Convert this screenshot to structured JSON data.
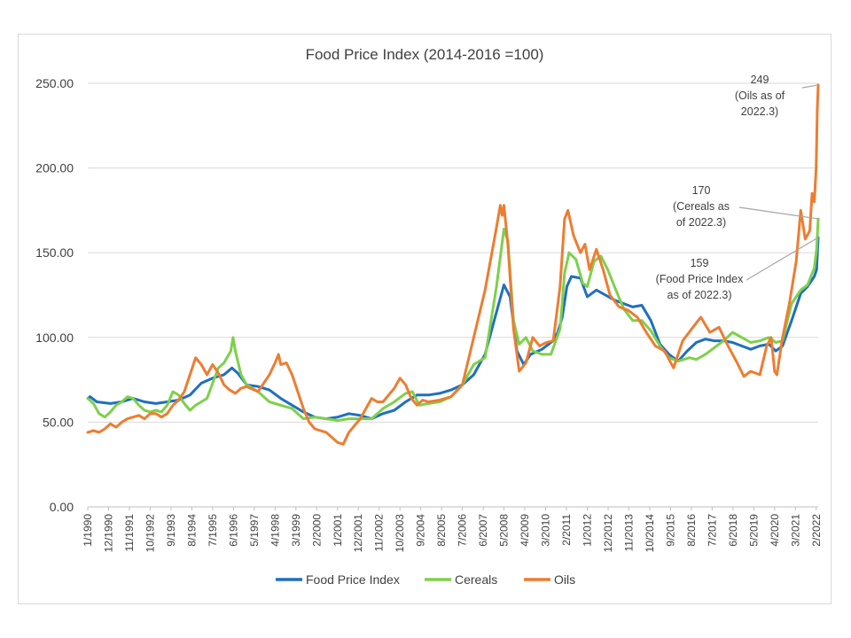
{
  "chart_data": {
    "type": "line",
    "title": "Food Price Index (2014-2016 =100)",
    "xlabel": "",
    "ylabel": "",
    "ylim": [
      0,
      250
    ],
    "yticks": [
      "0.00",
      "50.00",
      "100.00",
      "150.00",
      "200.00",
      "250.00"
    ],
    "y_tick_values": [
      0,
      50,
      100,
      150,
      200,
      250
    ],
    "x_start": "1/1990",
    "x_end": "3/2022",
    "xticks": [
      "1/1990",
      "12/1990",
      "11/1991",
      "10/1992",
      "9/1993",
      "8/1994",
      "7/1995",
      "6/1996",
      "5/1997",
      "4/1998",
      "3/1999",
      "2/2000",
      "1/2001",
      "12/2001",
      "11/2002",
      "10/2003",
      "9/2004",
      "8/2005",
      "7/2006",
      "6/2007",
      "5/2008",
      "4/2009",
      "3/2010",
      "2/2011",
      "1/2012",
      "12/2012",
      "11/2013",
      "10/2014",
      "9/2015",
      "8/2016",
      "7/2017",
      "6/2018",
      "5/2019",
      "4/2020",
      "3/2021",
      "2/2022"
    ],
    "legend_position": "bottom",
    "series": [
      {
        "name": "Food Price Index",
        "color": "#1f6fbf",
        "points": [
          [
            1990.0,
            64
          ],
          [
            1990.1,
            65
          ],
          [
            1990.4,
            62
          ],
          [
            1991.0,
            61
          ],
          [
            1991.5,
            62
          ],
          [
            1992.0,
            64
          ],
          [
            1992.5,
            62
          ],
          [
            1993.0,
            61
          ],
          [
            1993.5,
            62
          ],
          [
            1994.0,
            63
          ],
          [
            1994.5,
            66
          ],
          [
            1995.0,
            73
          ],
          [
            1995.5,
            76
          ],
          [
            1996.0,
            78
          ],
          [
            1996.35,
            82
          ],
          [
            1996.6,
            79
          ],
          [
            1997.0,
            72
          ],
          [
            1997.5,
            71
          ],
          [
            1998.0,
            69
          ],
          [
            1998.5,
            64
          ],
          [
            1999.0,
            60
          ],
          [
            1999.5,
            56
          ],
          [
            2000.0,
            53
          ],
          [
            2000.5,
            52
          ],
          [
            2001.0,
            53
          ],
          [
            2001.5,
            55
          ],
          [
            2002.0,
            54
          ],
          [
            2002.5,
            52
          ],
          [
            2003.0,
            55
          ],
          [
            2003.5,
            57
          ],
          [
            2004.0,
            62
          ],
          [
            2004.5,
            66
          ],
          [
            2005.0,
            66
          ],
          [
            2005.5,
            67
          ],
          [
            2006.0,
            69
          ],
          [
            2006.5,
            72
          ],
          [
            2007.0,
            78
          ],
          [
            2007.5,
            90
          ],
          [
            2008.0,
            115
          ],
          [
            2008.33,
            131
          ],
          [
            2008.6,
            124
          ],
          [
            2008.9,
            92
          ],
          [
            2009.2,
            84
          ],
          [
            2009.5,
            90
          ],
          [
            2010.0,
            93
          ],
          [
            2010.5,
            98
          ],
          [
            2010.7,
            103
          ],
          [
            2010.9,
            112
          ],
          [
            2011.1,
            130
          ],
          [
            2011.3,
            136
          ],
          [
            2011.7,
            135
          ],
          [
            2012.0,
            124
          ],
          [
            2012.4,
            128
          ],
          [
            2012.8,
            125
          ],
          [
            2013.2,
            122
          ],
          [
            2013.6,
            120
          ],
          [
            2014.0,
            118
          ],
          [
            2014.4,
            119
          ],
          [
            2014.8,
            110
          ],
          [
            2015.2,
            96
          ],
          [
            2015.6,
            90
          ],
          [
            2016.0,
            86
          ],
          [
            2016.4,
            92
          ],
          [
            2016.8,
            97
          ],
          [
            2017.2,
            99
          ],
          [
            2017.6,
            98
          ],
          [
            2018.0,
            98
          ],
          [
            2018.4,
            97
          ],
          [
            2018.8,
            95
          ],
          [
            2019.2,
            93
          ],
          [
            2019.6,
            95
          ],
          [
            2020.0,
            96
          ],
          [
            2020.3,
            92
          ],
          [
            2020.6,
            95
          ],
          [
            2021.0,
            110
          ],
          [
            2021.4,
            126
          ],
          [
            2021.7,
            130
          ],
          [
            2022.0,
            136
          ],
          [
            2022.1,
            140
          ],
          [
            2022.17,
            159
          ]
        ]
      },
      {
        "name": "Cereals",
        "color": "#7ed04b",
        "points": [
          [
            1990.0,
            64
          ],
          [
            1990.25,
            61
          ],
          [
            1990.5,
            55
          ],
          [
            1990.75,
            53
          ],
          [
            1991.0,
            56
          ],
          [
            1991.25,
            60
          ],
          [
            1991.5,
            62
          ],
          [
            1991.75,
            65
          ],
          [
            1992.0,
            64
          ],
          [
            1992.25,
            60
          ],
          [
            1992.5,
            57
          ],
          [
            1992.75,
            56
          ],
          [
            1993.0,
            57
          ],
          [
            1993.25,
            56
          ],
          [
            1993.5,
            60
          ],
          [
            1993.75,
            68
          ],
          [
            1994.0,
            66
          ],
          [
            1994.25,
            61
          ],
          [
            1994.5,
            57
          ],
          [
            1994.75,
            60
          ],
          [
            1995.0,
            62
          ],
          [
            1995.25,
            64
          ],
          [
            1995.5,
            73
          ],
          [
            1995.75,
            82
          ],
          [
            1996.0,
            85
          ],
          [
            1996.3,
            92
          ],
          [
            1996.4,
            100
          ],
          [
            1996.5,
            92
          ],
          [
            1996.75,
            78
          ],
          [
            1997.0,
            72
          ],
          [
            1997.5,
            68
          ],
          [
            1998.0,
            62
          ],
          [
            1998.5,
            60
          ],
          [
            1999.0,
            58
          ],
          [
            1999.5,
            52
          ],
          [
            2000.0,
            53
          ],
          [
            2000.5,
            52
          ],
          [
            2001.0,
            51
          ],
          [
            2001.5,
            52
          ],
          [
            2002.0,
            52
          ],
          [
            2002.5,
            52
          ],
          [
            2003.0,
            58
          ],
          [
            2003.5,
            62
          ],
          [
            2004.0,
            67
          ],
          [
            2004.3,
            68
          ],
          [
            2004.6,
            60
          ],
          [
            2005.0,
            61
          ],
          [
            2005.5,
            62
          ],
          [
            2006.0,
            65
          ],
          [
            2006.5,
            72
          ],
          [
            2007.0,
            84
          ],
          [
            2007.5,
            88
          ],
          [
            2008.0,
            130
          ],
          [
            2008.33,
            164
          ],
          [
            2008.5,
            157
          ],
          [
            2008.75,
            110
          ],
          [
            2009.0,
            96
          ],
          [
            2009.3,
            100
          ],
          [
            2009.6,
            92
          ],
          [
            2010.0,
            90
          ],
          [
            2010.4,
            90
          ],
          [
            2010.8,
            105
          ],
          [
            2011.0,
            138
          ],
          [
            2011.2,
            150
          ],
          [
            2011.5,
            146
          ],
          [
            2011.8,
            132
          ],
          [
            2012.0,
            130
          ],
          [
            2012.3,
            145
          ],
          [
            2012.6,
            148
          ],
          [
            2012.9,
            140
          ],
          [
            2013.2,
            130
          ],
          [
            2013.6,
            117
          ],
          [
            2014.0,
            110
          ],
          [
            2014.4,
            110
          ],
          [
            2014.8,
            104
          ],
          [
            2015.2,
            95
          ],
          [
            2015.6,
            88
          ],
          [
            2016.0,
            86
          ],
          [
            2016.5,
            88
          ],
          [
            2016.8,
            87
          ],
          [
            2017.2,
            90
          ],
          [
            2017.6,
            94
          ],
          [
            2018.0,
            98
          ],
          [
            2018.4,
            103
          ],
          [
            2018.8,
            100
          ],
          [
            2019.2,
            97
          ],
          [
            2019.6,
            98
          ],
          [
            2020.0,
            100
          ],
          [
            2020.3,
            97
          ],
          [
            2020.6,
            98
          ],
          [
            2021.0,
            120
          ],
          [
            2021.4,
            128
          ],
          [
            2021.7,
            131
          ],
          [
            2022.0,
            141
          ],
          [
            2022.1,
            152
          ],
          [
            2022.17,
            170
          ]
        ]
      },
      {
        "name": "Oils",
        "color": "#ed7d31",
        "points": [
          [
            1990.0,
            44
          ],
          [
            1990.25,
            45
          ],
          [
            1990.5,
            44
          ],
          [
            1990.75,
            46
          ],
          [
            1991.0,
            49
          ],
          [
            1991.25,
            47
          ],
          [
            1991.5,
            50
          ],
          [
            1991.75,
            52
          ],
          [
            1992.0,
            53
          ],
          [
            1992.25,
            54
          ],
          [
            1992.5,
            52
          ],
          [
            1992.75,
            55
          ],
          [
            1993.0,
            55
          ],
          [
            1993.25,
            53
          ],
          [
            1993.5,
            55
          ],
          [
            1993.75,
            60
          ],
          [
            1994.0,
            63
          ],
          [
            1994.25,
            68
          ],
          [
            1994.5,
            78
          ],
          [
            1994.75,
            88
          ],
          [
            1995.0,
            84
          ],
          [
            1995.25,
            78
          ],
          [
            1995.5,
            84
          ],
          [
            1995.75,
            79
          ],
          [
            1996.0,
            72
          ],
          [
            1996.25,
            69
          ],
          [
            1996.5,
            67
          ],
          [
            1996.75,
            70
          ],
          [
            1997.0,
            71
          ],
          [
            1997.5,
            68
          ],
          [
            1998.0,
            78
          ],
          [
            1998.25,
            85
          ],
          [
            1998.4,
            90
          ],
          [
            1998.5,
            84
          ],
          [
            1998.75,
            85
          ],
          [
            1999.0,
            78
          ],
          [
            1999.25,
            68
          ],
          [
            1999.5,
            58
          ],
          [
            1999.75,
            50
          ],
          [
            2000.0,
            46
          ],
          [
            2000.5,
            44
          ],
          [
            2001.0,
            38
          ],
          [
            2001.25,
            37
          ],
          [
            2001.5,
            44
          ],
          [
            2001.75,
            48
          ],
          [
            2002.0,
            52
          ],
          [
            2002.25,
            58
          ],
          [
            2002.5,
            64
          ],
          [
            2002.75,
            62
          ],
          [
            2003.0,
            62
          ],
          [
            2003.25,
            66
          ],
          [
            2003.5,
            70
          ],
          [
            2003.75,
            76
          ],
          [
            2004.0,
            72
          ],
          [
            2004.25,
            64
          ],
          [
            2004.5,
            60
          ],
          [
            2004.75,
            63
          ],
          [
            2005.0,
            62
          ],
          [
            2005.5,
            63
          ],
          [
            2006.0,
            65
          ],
          [
            2006.5,
            72
          ],
          [
            2007.0,
            100
          ],
          [
            2007.5,
            128
          ],
          [
            2007.8,
            150
          ],
          [
            2008.0,
            165
          ],
          [
            2008.17,
            178
          ],
          [
            2008.25,
            172
          ],
          [
            2008.33,
            178
          ],
          [
            2008.5,
            155
          ],
          [
            2008.75,
            105
          ],
          [
            2009.0,
            80
          ],
          [
            2009.3,
            85
          ],
          [
            2009.6,
            100
          ],
          [
            2009.9,
            95
          ],
          [
            2010.2,
            97
          ],
          [
            2010.5,
            98
          ],
          [
            2010.8,
            130
          ],
          [
            2011.0,
            170
          ],
          [
            2011.15,
            175
          ],
          [
            2011.4,
            160
          ],
          [
            2011.7,
            150
          ],
          [
            2011.9,
            155
          ],
          [
            2012.1,
            140
          ],
          [
            2012.4,
            152
          ],
          [
            2012.7,
            140
          ],
          [
            2013.0,
            125
          ],
          [
            2013.4,
            118
          ],
          [
            2013.8,
            116
          ],
          [
            2014.2,
            112
          ],
          [
            2014.6,
            103
          ],
          [
            2015.0,
            95
          ],
          [
            2015.4,
            92
          ],
          [
            2015.8,
            82
          ],
          [
            2016.2,
            98
          ],
          [
            2016.6,
            105
          ],
          [
            2017.0,
            112
          ],
          [
            2017.4,
            103
          ],
          [
            2017.8,
            106
          ],
          [
            2018.2,
            95
          ],
          [
            2018.6,
            85
          ],
          [
            2018.9,
            77
          ],
          [
            2019.2,
            80
          ],
          [
            2019.6,
            78
          ],
          [
            2019.9,
            95
          ],
          [
            2020.1,
            100
          ],
          [
            2020.25,
            80
          ],
          [
            2020.35,
            78
          ],
          [
            2020.6,
            100
          ],
          [
            2020.9,
            120
          ],
          [
            2021.2,
            145
          ],
          [
            2021.4,
            175
          ],
          [
            2021.6,
            158
          ],
          [
            2021.8,
            163
          ],
          [
            2021.9,
            185
          ],
          [
            2022.0,
            180
          ],
          [
            2022.08,
            200
          ],
          [
            2022.13,
            235
          ],
          [
            2022.17,
            249
          ]
        ]
      }
    ],
    "annotations": [
      {
        "lines": [
          "249",
          "(Oils as of",
          "2022.3)"
        ],
        "target": [
          2022.17,
          249
        ]
      },
      {
        "lines": [
          "170",
          "(Cereals as",
          "of 2022.3)"
        ],
        "target": [
          2022.17,
          170
        ]
      },
      {
        "lines": [
          "159",
          "(Food Price Index",
          "as of 2022.3)"
        ],
        "target": [
          2022.17,
          159
        ]
      }
    ]
  }
}
